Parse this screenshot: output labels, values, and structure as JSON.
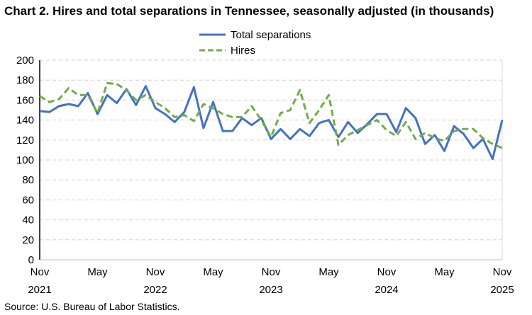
{
  "chart_data": {
    "type": "line",
    "title": "Chart 2. Hires and total separations in Tennessee, seasonally adjusted (in thousands)",
    "source": "Source: U.S. Bureau of Labor Statistics.",
    "xlabel": "",
    "ylabel": "",
    "ylim": [
      0,
      200
    ],
    "yticks": [
      0,
      20,
      40,
      60,
      80,
      100,
      120,
      140,
      160,
      180,
      200
    ],
    "grid": true,
    "legend_position": "top-center",
    "x_start": "Nov 2021",
    "x_end": "Nov 2025",
    "xtick_labels": [
      {
        "month": "Nov",
        "year": "2021"
      },
      {
        "month": "May",
        "year": ""
      },
      {
        "month": "Nov",
        "year": "2022"
      },
      {
        "month": "May",
        "year": ""
      },
      {
        "month": "Nov",
        "year": "2023"
      },
      {
        "month": "May",
        "year": ""
      },
      {
        "month": "Nov",
        "year": "2024"
      },
      {
        "month": "May",
        "year": ""
      },
      {
        "month": "Nov",
        "year": "2025"
      }
    ],
    "series": [
      {
        "name": "Total separations",
        "color": "#4472C4",
        "style": "solid",
        "values": [
          149,
          148,
          154,
          156,
          154,
          167,
          146,
          165,
          157,
          171,
          155,
          174,
          152,
          146,
          138,
          148,
          173,
          132,
          158,
          129,
          129,
          142,
          135,
          142,
          121,
          131,
          121,
          131,
          124,
          137,
          140,
          123,
          138,
          127,
          136,
          146,
          146,
          128,
          152,
          142,
          116,
          125,
          109,
          134,
          126,
          112,
          121,
          101,
          140
        ]
      },
      {
        "name": "Hires",
        "color": "#70AD47",
        "style": "dashed",
        "values": [
          164,
          158,
          161,
          172,
          165,
          165,
          147,
          177,
          176,
          170,
          160,
          165,
          158,
          152,
          143,
          145,
          139,
          156,
          152,
          146,
          143,
          143,
          154,
          140,
          123,
          147,
          150,
          170,
          137,
          150,
          165,
          115,
          125,
          130,
          135,
          140,
          130,
          124,
          138,
          121,
          127,
          122,
          119,
          129,
          131,
          131,
          122,
          116,
          112
        ]
      }
    ]
  }
}
